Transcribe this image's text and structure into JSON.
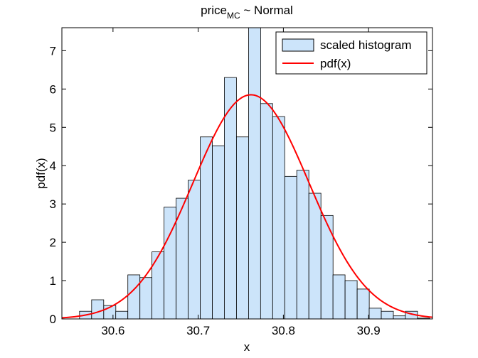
{
  "chart_data": {
    "type": "bar",
    "title": {
      "main": "price",
      "sub": "MC",
      "rest": " ~ Normal"
    },
    "xlabel": "x",
    "ylabel": "pdf(x)",
    "xlim": [
      30.54,
      30.975
    ],
    "ylim": [
      0,
      7.6
    ],
    "x_ticks": [
      30.6,
      30.7,
      30.8,
      30.9
    ],
    "x_tick_labels": [
      "30.6",
      "30.7",
      "30.8",
      "30.9"
    ],
    "y_ticks": [
      0,
      1,
      2,
      3,
      4,
      5,
      6,
      7
    ],
    "y_tick_labels": [
      "0",
      "1",
      "2",
      "3",
      "4",
      "5",
      "6",
      "7"
    ],
    "grid": false,
    "legend_position": "top-right",
    "colors": {
      "histogram_fill": "#cce4fa",
      "histogram_edge": "#000000",
      "pdf_line": "#ff0000"
    },
    "series": [
      {
        "name": "scaled histogram",
        "kind": "histogram",
        "bin_width": 0.01417,
        "bin_centers": [
          30.5678,
          30.582,
          30.5962,
          30.6103,
          30.6245,
          30.6387,
          30.6528,
          30.667,
          30.6812,
          30.6953,
          30.7095,
          30.7237,
          30.7378,
          30.752,
          30.7662,
          30.7803,
          30.7945,
          30.8087,
          30.8228,
          30.837,
          30.8512,
          30.8653,
          30.8795,
          30.8937,
          30.9078,
          30.922,
          30.9362,
          30.9503,
          30.9645
        ],
        "values": [
          0.2,
          0.5,
          0.35,
          0.2,
          1.15,
          1.08,
          1.75,
          2.92,
          3.15,
          3.62,
          4.75,
          4.52,
          6.3,
          4.75,
          7.6,
          5.62,
          5.28,
          3.72,
          3.88,
          3.28,
          2.7,
          1.15,
          1.0,
          0.78,
          0.28,
          0.2,
          0.08,
          0.2,
          0.02
        ]
      },
      {
        "name": "pdf(x)",
        "kind": "line",
        "mean": 30.762,
        "sigma": 0.0682
      }
    ]
  }
}
